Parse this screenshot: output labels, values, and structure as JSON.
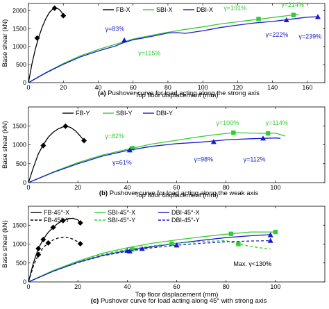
{
  "figure": {
    "y_label": "Base shear (kN)",
    "x_label": "Top floor displacement (mm)"
  },
  "chart_data": [
    {
      "type": "line",
      "caption_letter": "(a)",
      "caption_text": "Pushover curve for load acting along the strong axis",
      "xlabel": "Top floor displacement (mm)",
      "ylabel": "Base shear (kN)",
      "xlim": [
        0,
        170
      ],
      "ylim": [
        0,
        2200
      ],
      "xticks": [
        0,
        20,
        40,
        60,
        80,
        100,
        120,
        140,
        160
      ],
      "yticks": [
        0,
        500,
        1000,
        1500,
        2000
      ],
      "legend": "top-center",
      "series": [
        {
          "name": "FB-X",
          "color": "#000000",
          "dash": false,
          "marker": "diamond",
          "x": [
            0,
            2,
            4,
            6,
            8,
            10,
            12,
            14,
            16,
            17.5,
            19,
            20
          ],
          "y": [
            0,
            520,
            940,
            1280,
            1560,
            1780,
            1950,
            2050,
            2070,
            2040,
            1960,
            1860
          ],
          "markers": [
            [
              5,
              1240
            ],
            [
              15,
              2070
            ],
            [
              20,
              1860
            ]
          ]
        },
        {
          "name": "SBI-X",
          "color": "#33cc33",
          "dash": false,
          "marker": "square",
          "x": [
            0,
            10,
            20,
            30,
            40,
            50,
            56,
            60,
            70,
            80,
            90,
            100,
            110,
            120,
            130,
            140,
            150,
            155
          ],
          "y": [
            0,
            280,
            530,
            750,
            920,
            1070,
            1150,
            1210,
            1310,
            1400,
            1480,
            1550,
            1630,
            1690,
            1750,
            1810,
            1870,
            1900
          ],
          "markers": [
            [
              132,
              1770
            ],
            [
              152,
              1880
            ]
          ]
        },
        {
          "name": "DBI-X",
          "color": "#1a1acc",
          "dash": false,
          "marker": "triangle",
          "x": [
            0,
            10,
            20,
            30,
            40,
            50,
            54,
            60,
            70,
            80,
            85,
            90,
            100,
            110,
            120,
            130,
            140,
            150,
            160,
            166
          ],
          "y": [
            0,
            270,
            510,
            720,
            880,
            1020,
            1100,
            1190,
            1280,
            1380,
            1390,
            1370,
            1440,
            1530,
            1600,
            1660,
            1700,
            1760,
            1820,
            1830
          ],
          "markers": [
            [
              55,
              1180
            ],
            [
              148,
              1740
            ],
            [
              166,
              1830
            ]
          ]
        }
      ],
      "annotations": [
        {
          "text": "γ=83%",
          "x": 44,
          "y": 1440,
          "color": "#1a1acc"
        },
        {
          "text": "γ=115%",
          "x": 63,
          "y": 760,
          "color": "#33cc33"
        },
        {
          "text": "γ=191%",
          "x": 112,
          "y": 2020,
          "color": "#33cc33"
        },
        {
          "text": "γ=214%",
          "x": 145,
          "y": 2100,
          "color": "#33cc33"
        },
        {
          "text": "γ=222%",
          "x": 136,
          "y": 1270,
          "color": "#1a1acc"
        },
        {
          "text": "γ=239%",
          "x": 155,
          "y": 1230,
          "color": "#1a1acc"
        }
      ]
    },
    {
      "type": "line",
      "caption_letter": "(b)",
      "caption_text": "Pushover curve for load acting along the weak axis",
      "xlabel": "Top floor displacement (mm)",
      "ylabel": "Base shear (kN)",
      "xlim": [
        0,
        120
      ],
      "ylim": [
        0,
        2000
      ],
      "xticks": [
        0,
        20,
        40,
        60,
        80,
        100
      ],
      "yticks": [
        0,
        500,
        1000,
        1500
      ],
      "legend": "top-center",
      "series": [
        {
          "name": "FB-Y",
          "color": "#000000",
          "dash": false,
          "marker": "diamond",
          "x": [
            0,
            2,
            4,
            6,
            8,
            10,
            12,
            14,
            15,
            17,
            19,
            21,
            22.5
          ],
          "y": [
            0,
            400,
            760,
            1000,
            1200,
            1330,
            1420,
            1470,
            1490,
            1460,
            1370,
            1230,
            1110
          ],
          "markers": [
            [
              6,
              980
            ],
            [
              15,
              1490
            ],
            [
              22.5,
              1110
            ]
          ]
        },
        {
          "name": "SBI-Y",
          "color": "#33cc33",
          "dash": false,
          "marker": "square",
          "x": [
            0,
            10,
            20,
            30,
            40,
            50,
            60,
            70,
            80,
            83,
            90,
            95,
            100,
            104
          ],
          "y": [
            0,
            280,
            530,
            730,
            880,
            1020,
            1120,
            1220,
            1300,
            1320,
            1310,
            1300,
            1310,
            1230
          ],
          "markers": [
            [
              42,
              910
            ],
            [
              83,
              1320
            ],
            [
              97,
              1300
            ]
          ]
        },
        {
          "name": "DBI-Y",
          "color": "#1a1acc",
          "dash": false,
          "marker": "triangle",
          "x": [
            0,
            10,
            20,
            30,
            40,
            50,
            60,
            70,
            80,
            90,
            100,
            102
          ],
          "y": [
            0,
            270,
            500,
            700,
            850,
            960,
            1030,
            1070,
            1130,
            1160,
            1180,
            1170
          ],
          "markers": [
            [
              41,
              860
            ],
            [
              75,
              1080
            ],
            [
              95,
              1170
            ]
          ]
        }
      ],
      "annotations": [
        {
          "text": "γ=82%",
          "x": 31,
          "y": 1170,
          "color": "#33cc33"
        },
        {
          "text": "γ=61%",
          "x": 34,
          "y": 480,
          "color": "#1a1acc"
        },
        {
          "text": "γ=100%",
          "x": 76,
          "y": 1520,
          "color": "#33cc33"
        },
        {
          "text": "γ=98%",
          "x": 67,
          "y": 560,
          "color": "#1a1acc"
        },
        {
          "text": "γ=114%",
          "x": 96,
          "y": 1520,
          "color": "#33cc33"
        },
        {
          "text": "γ=112%",
          "x": 87,
          "y": 560,
          "color": "#1a1acc"
        }
      ]
    },
    {
      "type": "line",
      "caption_letter": "(c)",
      "caption_text": "Pushover curve for load acting along 45° with strong axis",
      "xlabel": "Top floor displacement (mm)",
      "ylabel": "Base shear (kN)",
      "xlim": [
        0,
        120
      ],
      "ylim": [
        0,
        2000
      ],
      "xticks": [
        0,
        20,
        40,
        60,
        80,
        100
      ],
      "yticks": [
        0,
        500,
        1000,
        1500
      ],
      "legend": "top-left",
      "series": [
        {
          "name": "FB-45°-X",
          "color": "#000000",
          "dash": false,
          "marker": "diamond",
          "x": [
            0,
            2,
            4,
            6,
            8,
            10,
            12,
            14,
            16,
            18,
            20,
            21
          ],
          "y": [
            0,
            500,
            880,
            1130,
            1310,
            1440,
            1550,
            1620,
            1670,
            1680,
            1640,
            1560
          ],
          "markers": [
            [
              4,
              880
            ],
            [
              6,
              1120
            ],
            [
              10,
              1440
            ],
            [
              14,
              1620
            ],
            [
              21,
              1560
            ]
          ]
        },
        {
          "name": "SBI-45°-X",
          "color": "#33cc33",
          "dash": false,
          "marker": "square",
          "x": [
            0,
            10,
            20,
            30,
            40,
            50,
            60,
            70,
            80,
            90,
            100
          ],
          "y": [
            0,
            300,
            550,
            760,
            900,
            1020,
            1110,
            1190,
            1260,
            1320,
            1320
          ],
          "markers": [
            [
              82,
              1270
            ],
            [
              100,
              1320
            ]
          ]
        },
        {
          "name": "DBI-45°-X",
          "color": "#1a1acc",
          "dash": false,
          "marker": "triangle",
          "x": [
            0,
            10,
            20,
            30,
            40,
            50,
            60,
            70,
            80,
            90,
            98
          ],
          "y": [
            0,
            280,
            520,
            700,
            830,
            930,
            1020,
            1100,
            1170,
            1220,
            1250
          ],
          "markers": [
            [
              40,
              830
            ],
            [
              46,
              880
            ],
            [
              98,
              1240
            ]
          ]
        },
        {
          "name": "FB-45°-Y",
          "color": "#000000",
          "dash": true,
          "marker": "diamond",
          "x": [
            0,
            2,
            4,
            6,
            8,
            10,
            12,
            14,
            16,
            18,
            20,
            21
          ],
          "y": [
            0,
            420,
            720,
            910,
            1030,
            1110,
            1160,
            1180,
            1170,
            1130,
            1060,
            1010
          ],
          "markers": [
            [
              4,
              720
            ],
            [
              8,
              1030
            ],
            [
              21,
              1010
            ]
          ]
        },
        {
          "name": "SBI-45°-Y",
          "color": "#33cc33",
          "dash": true,
          "marker": "square",
          "x": [
            0,
            10,
            20,
            30,
            40,
            50,
            60,
            70,
            80,
            85,
            90,
            95,
            98
          ],
          "y": [
            0,
            300,
            540,
            730,
            860,
            950,
            1020,
            1070,
            1090,
            1000,
            940,
            890,
            870
          ],
          "markers": [
            [
              42,
              860
            ],
            [
              58,
              1010
            ],
            [
              85,
              1000
            ]
          ]
        },
        {
          "name": "DBI-45°-Y",
          "color": "#1a1acc",
          "dash": true,
          "marker": "triangle",
          "x": [
            0,
            10,
            20,
            30,
            40,
            50,
            60,
            70,
            80,
            90,
            98
          ],
          "y": [
            0,
            280,
            510,
            690,
            810,
            900,
            970,
            1020,
            1060,
            1080,
            1090
          ],
          "markers": [
            [
              41,
              810
            ],
            [
              60,
              970
            ],
            [
              98,
              1090
            ]
          ]
        }
      ],
      "annotations": [
        {
          "text": "Max. γ<130%",
          "x": 83,
          "y": 420,
          "color": "#000000"
        }
      ]
    }
  ]
}
